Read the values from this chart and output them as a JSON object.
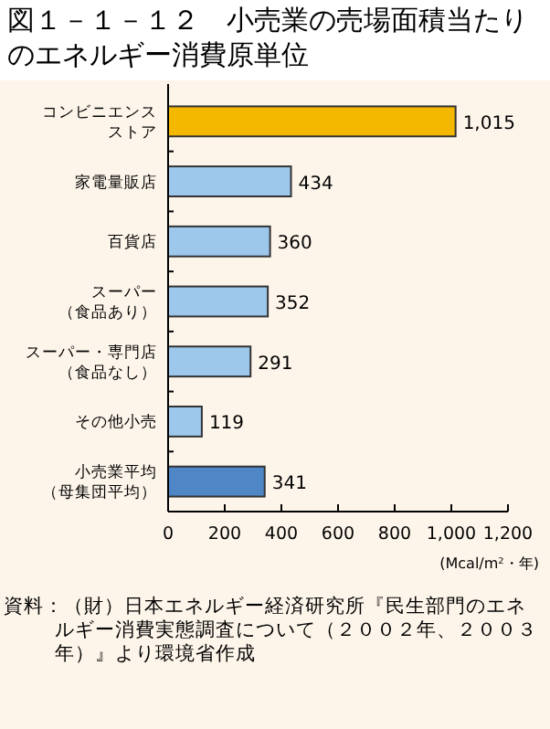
{
  "chart_data": {
    "type": "bar",
    "orientation": "horizontal",
    "title": "図１－１－１２　小売業の売場面積当たりのエネルギー消費原単位",
    "categories": [
      "コンビニエンスストア",
      "家電量販店",
      "百貨店",
      "スーパー（食品あり）",
      "スーパー・専門店（食品なし）",
      "その他小売",
      "小売業平均（母集団平均）"
    ],
    "values": [
      1015,
      434,
      360,
      352,
      291,
      119,
      341
    ],
    "colors": [
      "#f5b800",
      "#9dc8ec",
      "#9dc8ec",
      "#9dc8ec",
      "#9dc8ec",
      "#9dc8ec",
      "#4f86c6"
    ],
    "value_labels": [
      "1,015",
      "434",
      "360",
      "352",
      "291",
      "119",
      "341"
    ],
    "xlim": [
      0,
      1200
    ],
    "xticks": [
      0,
      200,
      400,
      600,
      800,
      {
        "value": 1000,
        "label": "1,000"
      },
      {
        "value": 1200,
        "label": "1,200"
      }
    ],
    "xlabel": "(Mcal/m²・年)",
    "annotations": [
      "資料：（財）日本エネルギー経済研究所『民生部門のエネルギー消費実態調査について（２００２年、２００３年）』より環境省作成"
    ]
  }
}
